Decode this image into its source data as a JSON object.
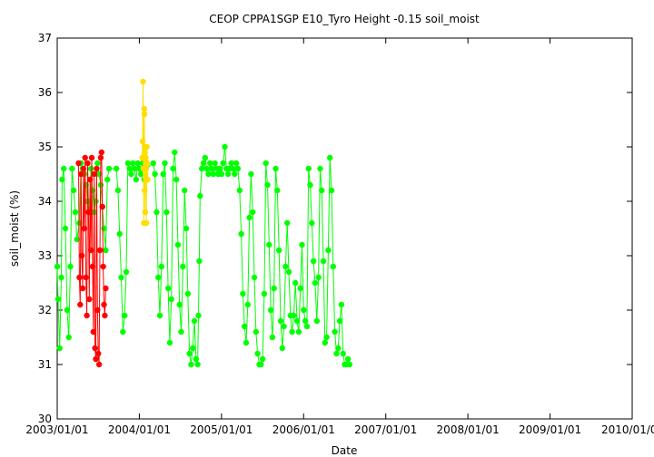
{
  "chart_data": {
    "type": "scatter",
    "title": "CEOP CPPA1SGP E10_Tyro Height -0.15 soil_moist",
    "xlabel": "Date",
    "ylabel": "soil_moist (%)",
    "ylim": [
      30,
      37
    ],
    "yticks": [
      30,
      31,
      32,
      33,
      34,
      35,
      36,
      37
    ],
    "xlim": [
      2003.0,
      2010.0
    ],
    "xticks": [
      {
        "value": 2003.0,
        "label": "2003/01/01"
      },
      {
        "value": 2004.0,
        "label": "2004/01/01"
      },
      {
        "value": 2005.0,
        "label": "2005/01/01"
      },
      {
        "value": 2006.0,
        "label": "2006/01/01"
      },
      {
        "value": 2007.0,
        "label": "2007/01/01"
      },
      {
        "value": 2008.0,
        "label": "2008/01/01"
      },
      {
        "value": 2009.0,
        "label": "2009/01/01"
      },
      {
        "value": 2010.0,
        "label": "2010/01/01"
      }
    ],
    "grid": false,
    "series": [
      {
        "name": "good",
        "color": "#00ff00",
        "points": [
          [
            2003.0,
            32.8
          ],
          [
            2003.01,
            32.2
          ],
          [
            2003.03,
            31.3
          ],
          [
            2003.05,
            32.6
          ],
          [
            2003.06,
            34.4
          ],
          [
            2003.08,
            34.6
          ],
          [
            2003.1,
            33.5
          ],
          [
            2003.12,
            32.0
          ],
          [
            2003.14,
            31.5
          ],
          [
            2003.16,
            32.8
          ],
          [
            2003.18,
            34.6
          ],
          [
            2003.2,
            34.2
          ],
          [
            2003.22,
            33.8
          ],
          [
            2003.24,
            33.3
          ],
          [
            2003.27,
            33.6
          ],
          [
            2003.29,
            34.7
          ],
          [
            2003.31,
            34.6
          ],
          [
            2003.33,
            34.5
          ],
          [
            2003.35,
            34.3
          ],
          [
            2003.37,
            34.0
          ],
          [
            2003.39,
            33.8
          ],
          [
            2003.41,
            34.6
          ],
          [
            2003.43,
            34.2
          ],
          [
            2003.45,
            33.8
          ],
          [
            2003.47,
            34.0
          ],
          [
            2003.49,
            34.7
          ],
          [
            2003.51,
            34.5
          ],
          [
            2003.53,
            34.3
          ],
          [
            2003.55,
            33.9
          ],
          [
            2003.57,
            33.5
          ],
          [
            2003.59,
            33.1
          ],
          [
            2003.61,
            34.4
          ],
          [
            2003.63,
            34.6
          ],
          [
            2003.72,
            34.6
          ],
          [
            2003.74,
            34.2
          ],
          [
            2003.76,
            33.4
          ],
          [
            2003.78,
            32.6
          ],
          [
            2003.8,
            31.6
          ],
          [
            2003.82,
            31.9
          ],
          [
            2003.84,
            32.7
          ],
          [
            2003.86,
            34.7
          ],
          [
            2003.88,
            34.6
          ],
          [
            2003.9,
            34.5
          ],
          [
            2003.92,
            34.7
          ],
          [
            2003.94,
            34.6
          ],
          [
            2003.96,
            34.4
          ],
          [
            2003.98,
            34.7
          ],
          [
            2004.0,
            34.6
          ],
          [
            2004.02,
            34.5
          ],
          [
            2004.04,
            34.7
          ],
          [
            2004.06,
            34.4
          ],
          [
            2004.08,
            34.6
          ],
          [
            2004.17,
            34.7
          ],
          [
            2004.19,
            34.5
          ],
          [
            2004.21,
            33.8
          ],
          [
            2004.23,
            32.6
          ],
          [
            2004.25,
            31.9
          ],
          [
            2004.27,
            32.8
          ],
          [
            2004.29,
            34.5
          ],
          [
            2004.31,
            34.7
          ],
          [
            2004.33,
            33.8
          ],
          [
            2004.35,
            32.4
          ],
          [
            2004.37,
            31.4
          ],
          [
            2004.39,
            32.2
          ],
          [
            2004.41,
            34.6
          ],
          [
            2004.43,
            34.9
          ],
          [
            2004.45,
            34.4
          ],
          [
            2004.47,
            33.2
          ],
          [
            2004.49,
            32.1
          ],
          [
            2004.51,
            31.6
          ],
          [
            2004.53,
            32.8
          ],
          [
            2004.55,
            34.2
          ],
          [
            2004.57,
            33.5
          ],
          [
            2004.59,
            32.3
          ],
          [
            2004.61,
            31.2
          ],
          [
            2004.63,
            31.0
          ],
          [
            2004.65,
            31.3
          ],
          [
            2004.67,
            31.8
          ],
          [
            2004.69,
            31.1
          ],
          [
            2004.71,
            31.0
          ],
          [
            2004.72,
            31.9
          ],
          [
            2004.73,
            32.9
          ],
          [
            2004.74,
            34.1
          ],
          [
            2004.76,
            34.6
          ],
          [
            2004.78,
            34.7
          ],
          [
            2004.8,
            34.8
          ],
          [
            2004.82,
            34.6
          ],
          [
            2004.84,
            34.5
          ],
          [
            2004.86,
            34.7
          ],
          [
            2004.88,
            34.6
          ],
          [
            2004.9,
            34.5
          ],
          [
            2004.92,
            34.7
          ],
          [
            2004.94,
            34.6
          ],
          [
            2004.96,
            34.5
          ],
          [
            2004.98,
            34.6
          ],
          [
            2005.0,
            34.5
          ],
          [
            2005.02,
            34.7
          ],
          [
            2005.04,
            35.0
          ],
          [
            2005.06,
            34.6
          ],
          [
            2005.08,
            34.5
          ],
          [
            2005.1,
            34.6
          ],
          [
            2005.12,
            34.7
          ],
          [
            2005.14,
            34.6
          ],
          [
            2005.16,
            34.5
          ],
          [
            2005.18,
            34.7
          ],
          [
            2005.2,
            34.6
          ],
          [
            2005.22,
            34.2
          ],
          [
            2005.24,
            33.4
          ],
          [
            2005.26,
            32.3
          ],
          [
            2005.28,
            31.7
          ],
          [
            2005.3,
            31.4
          ],
          [
            2005.32,
            32.1
          ],
          [
            2005.34,
            33.7
          ],
          [
            2005.36,
            34.5
          ],
          [
            2005.38,
            33.8
          ],
          [
            2005.4,
            32.6
          ],
          [
            2005.42,
            31.6
          ],
          [
            2005.44,
            31.2
          ],
          [
            2005.46,
            31.0
          ],
          [
            2005.48,
            31.0
          ],
          [
            2005.5,
            31.1
          ],
          [
            2005.52,
            32.3
          ],
          [
            2005.54,
            34.7
          ],
          [
            2005.56,
            34.3
          ],
          [
            2005.58,
            33.2
          ],
          [
            2005.6,
            32.0
          ],
          [
            2005.62,
            31.5
          ],
          [
            2005.64,
            32.4
          ],
          [
            2005.66,
            34.6
          ],
          [
            2005.68,
            34.2
          ],
          [
            2005.7,
            33.1
          ],
          [
            2005.72,
            31.8
          ],
          [
            2005.74,
            31.3
          ],
          [
            2005.76,
            31.7
          ],
          [
            2005.78,
            32.8
          ],
          [
            2005.8,
            33.6
          ],
          [
            2005.82,
            32.7
          ],
          [
            2005.84,
            31.9
          ],
          [
            2005.86,
            31.6
          ],
          [
            2005.88,
            31.9
          ],
          [
            2005.9,
            32.5
          ],
          [
            2005.92,
            31.8
          ],
          [
            2005.94,
            31.6
          ],
          [
            2005.96,
            32.4
          ],
          [
            2005.98,
            33.2
          ],
          [
            2006.0,
            32.0
          ],
          [
            2006.02,
            31.8
          ],
          [
            2006.04,
            31.7
          ],
          [
            2006.06,
            34.6
          ],
          [
            2006.08,
            34.3
          ],
          [
            2006.1,
            33.6
          ],
          [
            2006.12,
            32.9
          ],
          [
            2006.14,
            32.5
          ],
          [
            2006.16,
            31.8
          ],
          [
            2006.18,
            32.6
          ],
          [
            2006.2,
            34.6
          ],
          [
            2006.22,
            34.2
          ],
          [
            2006.24,
            32.9
          ],
          [
            2006.26,
            31.4
          ],
          [
            2006.28,
            31.5
          ],
          [
            2006.3,
            33.1
          ],
          [
            2006.32,
            34.8
          ],
          [
            2006.34,
            34.2
          ],
          [
            2006.36,
            32.8
          ],
          [
            2006.38,
            31.6
          ],
          [
            2006.4,
            31.2
          ],
          [
            2006.42,
            31.3
          ],
          [
            2006.44,
            31.8
          ],
          [
            2006.46,
            32.1
          ],
          [
            2006.48,
            31.2
          ],
          [
            2006.5,
            31.0
          ],
          [
            2006.52,
            31.0
          ],
          [
            2006.54,
            31.1
          ],
          [
            2006.56,
            31.0
          ]
        ]
      },
      {
        "name": "bad",
        "color": "#ff0000",
        "points": [
          [
            2003.26,
            34.7
          ],
          [
            2003.27,
            32.6
          ],
          [
            2003.28,
            32.1
          ],
          [
            2003.29,
            34.5
          ],
          [
            2003.3,
            33.0
          ],
          [
            2003.31,
            32.4
          ],
          [
            2003.32,
            34.6
          ],
          [
            2003.33,
            33.5
          ],
          [
            2003.34,
            34.8
          ],
          [
            2003.35,
            32.6
          ],
          [
            2003.36,
            31.9
          ],
          [
            2003.37,
            34.7
          ],
          [
            2003.38,
            33.8
          ],
          [
            2003.39,
            32.2
          ],
          [
            2003.4,
            34.4
          ],
          [
            2003.41,
            33.1
          ],
          [
            2003.42,
            34.8
          ],
          [
            2003.43,
            32.8
          ],
          [
            2003.44,
            31.6
          ],
          [
            2003.45,
            34.5
          ],
          [
            2003.46,
            31.3
          ],
          [
            2003.47,
            31.1
          ],
          [
            2003.48,
            34.6
          ],
          [
            2003.49,
            32.0
          ],
          [
            2003.5,
            31.2
          ],
          [
            2003.51,
            31.0
          ],
          [
            2003.52,
            33.1
          ],
          [
            2003.53,
            34.8
          ],
          [
            2003.54,
            34.9
          ],
          [
            2003.55,
            33.9
          ],
          [
            2003.56,
            32.8
          ],
          [
            2003.57,
            32.1
          ],
          [
            2003.58,
            31.9
          ],
          [
            2003.59,
            32.4
          ]
        ]
      },
      {
        "name": "questionable",
        "color": "#ffdd00",
        "points": [
          [
            2004.035,
            34.8
          ],
          [
            2004.04,
            35.1
          ],
          [
            2004.045,
            36.2
          ],
          [
            2004.05,
            34.6
          ],
          [
            2004.055,
            33.6
          ],
          [
            2004.06,
            35.7
          ],
          [
            2004.062,
            35.6
          ],
          [
            2004.065,
            34.2
          ],
          [
            2004.068,
            34.9
          ],
          [
            2004.07,
            33.8
          ],
          [
            2004.072,
            35.0
          ],
          [
            2004.075,
            34.5
          ],
          [
            2004.078,
            34.8
          ],
          [
            2004.08,
            34.6
          ],
          [
            2004.085,
            33.6
          ],
          [
            2004.09,
            35.0
          ],
          [
            2004.095,
            34.7
          ],
          [
            2004.1,
            34.4
          ]
        ]
      }
    ]
  }
}
